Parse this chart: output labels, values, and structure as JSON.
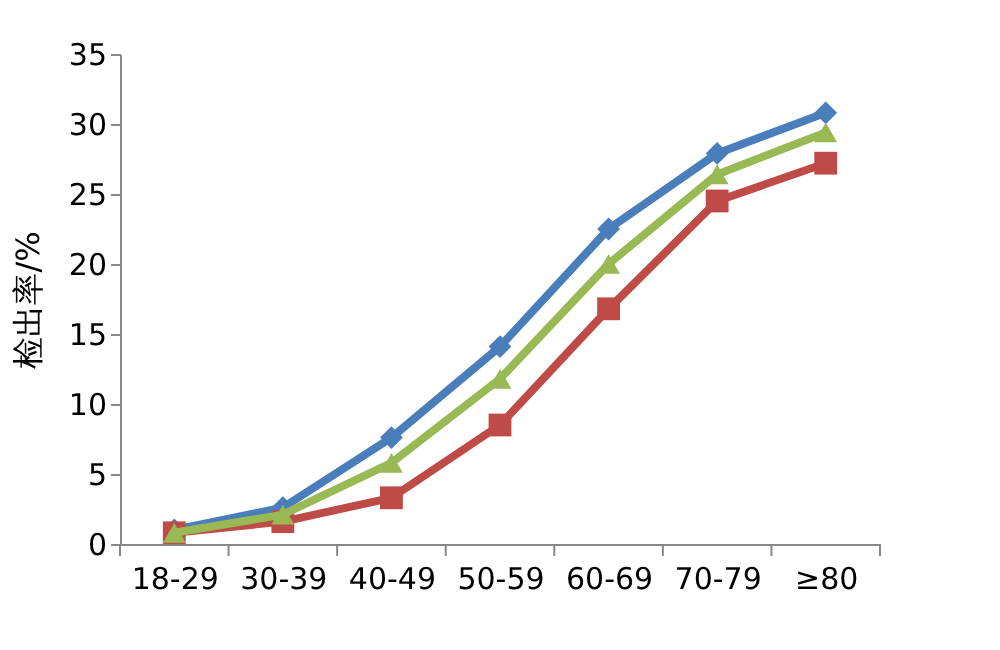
{
  "chart_data": {
    "type": "line",
    "ylabel": "检出率/%",
    "categories": [
      "18-29",
      "30-39",
      "40-49",
      "50-59",
      "60-69",
      "70-79",
      "≥80"
    ],
    "series": [
      {
        "color": "#4a7ebb",
        "marker": "diamond",
        "values": [
          1.0,
          2.6,
          7.6,
          14.1,
          22.5,
          27.9,
          30.8
        ]
      },
      {
        "color": "#be4b48",
        "marker": "square",
        "values": [
          0.8,
          1.6,
          3.3,
          8.5,
          16.8,
          24.5,
          27.2
        ]
      },
      {
        "color": "#98b954",
        "marker": "triangle",
        "values": [
          0.8,
          2.1,
          5.8,
          11.8,
          20.0,
          26.4,
          29.4
        ]
      }
    ],
    "ylim": [
      0,
      35
    ],
    "yticks": [
      0,
      5,
      10,
      15,
      20,
      25,
      30,
      35
    ],
    "grid": false,
    "line_style": "solid"
  }
}
